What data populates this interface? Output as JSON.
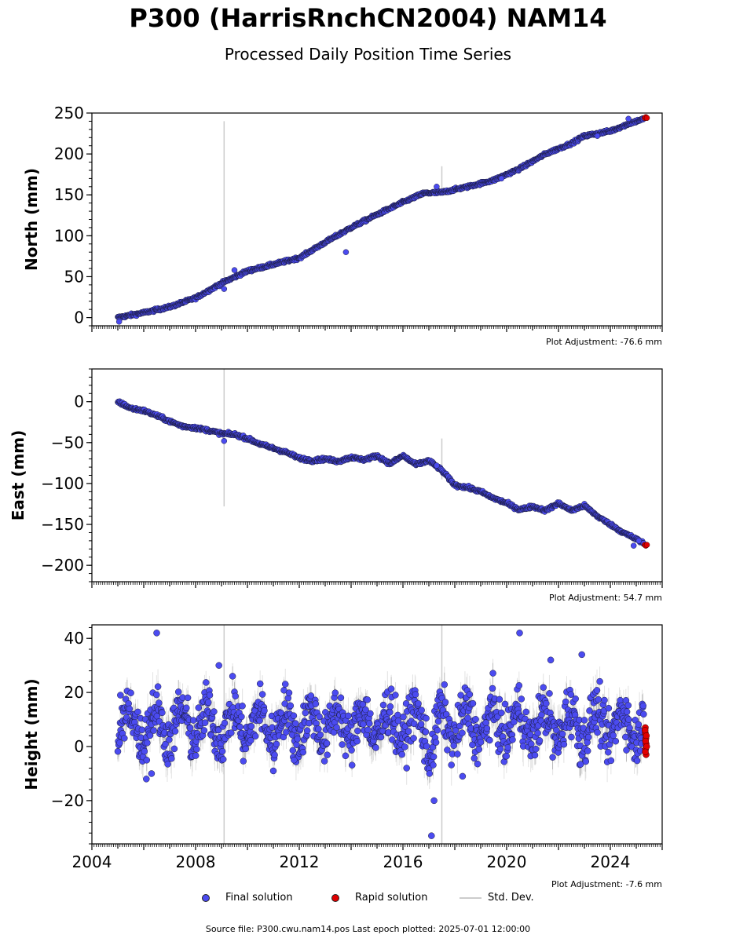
{
  "title": "P300 (HarrisRnchCN2004) NAM14",
  "subtitle": "Processed Daily Position Time Series",
  "footer": "Source file: P300.cwu.nam14.pos  Last epoch plotted: 2025-07-01 12:00:00",
  "legend": {
    "final": "Final solution",
    "rapid": "Rapid solution",
    "stddev": "Std. Dev."
  },
  "colors": {
    "final": "#4b4bf0",
    "rapid": "#e00000",
    "stddev": "#cccccc",
    "edge": "#1a1a3a"
  },
  "chart_data": [
    {
      "type": "scatter",
      "ylabel": "North (mm)",
      "adjustment": "Plot Adjustment: -76.6 mm",
      "xlim": [
        2004.0,
        2026.0
      ],
      "ylim": [
        -10,
        250
      ],
      "yticks": [
        0,
        50,
        100,
        150,
        200,
        250
      ],
      "ytick_labels": [
        "0",
        "50",
        "100",
        "150",
        "200",
        "250"
      ],
      "trend": [
        [
          2005.0,
          0
        ],
        [
          2006.0,
          6
        ],
        [
          2007.0,
          13
        ],
        [
          2008.0,
          24
        ],
        [
          2009.0,
          42
        ],
        [
          2010.0,
          57
        ],
        [
          2011.0,
          65
        ],
        [
          2012.0,
          73
        ],
        [
          2013.0,
          92
        ],
        [
          2014.0,
          110
        ],
        [
          2015.0,
          126
        ],
        [
          2016.0,
          141
        ],
        [
          2016.8,
          152
        ],
        [
          2017.5,
          153
        ],
        [
          2018.5,
          160
        ],
        [
          2019.5,
          168
        ],
        [
          2020.5,
          182
        ],
        [
          2021.5,
          200
        ],
        [
          2022.5,
          213
        ],
        [
          2023.0,
          222
        ],
        [
          2024.0,
          228
        ],
        [
          2024.8,
          238
        ],
        [
          2025.4,
          244
        ]
      ],
      "scatter_amp": 1.8,
      "outliers": [
        [
          2009.1,
          35
        ],
        [
          2009.5,
          58
        ],
        [
          2013.8,
          80
        ],
        [
          2017.3,
          160
        ],
        [
          2019.8,
          170
        ],
        [
          2023.5,
          222
        ],
        [
          2024.7,
          243
        ],
        [
          2005.05,
          -5
        ]
      ],
      "tall_errors": [
        [
          2009.1,
          240,
          41
        ],
        [
          2017.5,
          185,
          154
        ]
      ],
      "rapid": [
        [
          2025.33,
          244
        ],
        [
          2025.37,
          245
        ],
        [
          2025.41,
          244
        ]
      ]
    },
    {
      "type": "scatter",
      "ylabel": "East (mm)",
      "adjustment": "Plot Adjustment: 54.7 mm",
      "xlim": [
        2004.0,
        2026.0
      ],
      "ylim": [
        -220,
        40
      ],
      "yticks": [
        -200,
        -150,
        -100,
        -50,
        0
      ],
      "ytick_labels": [
        "−200",
        "−150",
        "−100",
        "−50",
        "0"
      ],
      "trend": [
        [
          2005.0,
          0
        ],
        [
          2005.5,
          -8
        ],
        [
          2006.0,
          -11
        ],
        [
          2006.5,
          -17
        ],
        [
          2007.0,
          -24
        ],
        [
          2007.5,
          -30
        ],
        [
          2008.0,
          -32
        ],
        [
          2008.5,
          -35
        ],
        [
          2009.0,
          -39
        ],
        [
          2009.5,
          -40
        ],
        [
          2010.0,
          -45
        ],
        [
          2010.5,
          -52
        ],
        [
          2011.0,
          -57
        ],
        [
          2011.5,
          -62
        ],
        [
          2012.0,
          -69
        ],
        [
          2012.5,
          -72
        ],
        [
          2013.0,
          -70
        ],
        [
          2013.5,
          -73
        ],
        [
          2014.0,
          -68
        ],
        [
          2014.5,
          -71
        ],
        [
          2015.0,
          -66
        ],
        [
          2015.5,
          -76
        ],
        [
          2016.0,
          -66
        ],
        [
          2016.5,
          -77
        ],
        [
          2017.0,
          -72
        ],
        [
          2017.5,
          -84
        ],
        [
          2018.0,
          -102
        ],
        [
          2018.5,
          -105
        ],
        [
          2019.0,
          -110
        ],
        [
          2019.5,
          -118
        ],
        [
          2020.0,
          -124
        ],
        [
          2020.5,
          -132
        ],
        [
          2021.0,
          -128
        ],
        [
          2021.5,
          -133
        ],
        [
          2022.0,
          -124
        ],
        [
          2022.5,
          -133
        ],
        [
          2023.0,
          -127
        ],
        [
          2023.5,
          -140
        ],
        [
          2024.0,
          -150
        ],
        [
          2024.5,
          -160
        ],
        [
          2025.0,
          -168
        ],
        [
          2025.4,
          -175
        ]
      ],
      "scatter_amp": 2.0,
      "outliers": [
        [
          2009.1,
          -48
        ],
        [
          2017.3,
          -78
        ],
        [
          2024.9,
          -176
        ],
        [
          2025.1,
          -170
        ]
      ],
      "tall_errors": [
        [
          2009.1,
          40,
          -128
        ],
        [
          2017.5,
          -45,
          -95
        ]
      ],
      "rapid": [
        [
          2025.33,
          -175
        ],
        [
          2025.37,
          -176
        ],
        [
          2025.41,
          -175
        ]
      ]
    },
    {
      "type": "scatter",
      "ylabel": "Height (mm)",
      "adjustment": "Plot Adjustment: -7.6 mm",
      "xlim": [
        2004.0,
        2026.0
      ],
      "ylim": [
        -36,
        45
      ],
      "yticks": [
        -20,
        0,
        20,
        40
      ],
      "ytick_labels": [
        "−20",
        "0",
        "20",
        "40"
      ],
      "xticks": [
        2004,
        2008,
        2012,
        2016,
        2020,
        2024
      ],
      "xtick_labels": [
        "2004",
        "2008",
        "2012",
        "2016",
        "2020",
        "2024"
      ],
      "seasonal_mean": 8,
      "seasonal_amp": 6,
      "scatter_amp": 9,
      "outliers": [
        [
          2006.5,
          42
        ],
        [
          2020.5,
          42
        ],
        [
          2017.1,
          -33
        ],
        [
          2017.2,
          -20
        ],
        [
          2021.7,
          32
        ],
        [
          2022.9,
          34
        ],
        [
          2005.1,
          19
        ],
        [
          2008.9,
          30
        ],
        [
          2018.3,
          -11
        ],
        [
          2006.1,
          -12
        ],
        [
          2006.3,
          -10
        ],
        [
          2011.0,
          -9
        ],
        [
          2011.8,
          -5
        ]
      ],
      "tall_errors": [
        [
          2009.1,
          45,
          -36
        ],
        [
          2017.5,
          45,
          -36
        ]
      ],
      "rapid": [
        [
          2025.35,
          7
        ],
        [
          2025.35,
          5
        ],
        [
          2025.37,
          3
        ],
        [
          2025.38,
          1
        ],
        [
          2025.36,
          -1
        ],
        [
          2025.38,
          -3
        ],
        [
          2025.34,
          6
        ],
        [
          2025.39,
          4
        ],
        [
          2025.36,
          2
        ],
        [
          2025.4,
          0
        ],
        [
          2025.35,
          -2
        ]
      ]
    }
  ]
}
